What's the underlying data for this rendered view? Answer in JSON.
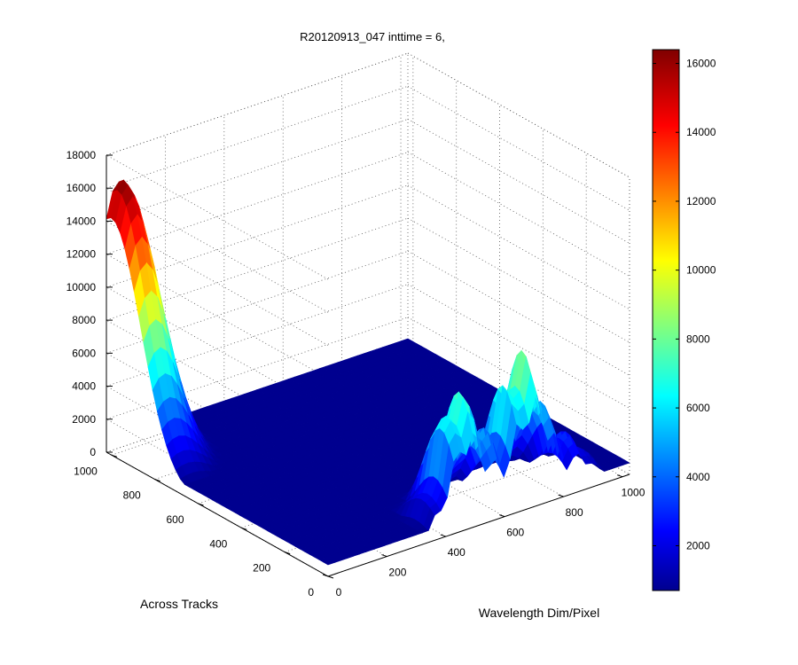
{
  "chart_data": {
    "type": "surface",
    "title": "R20120913_047 inttime = 6,",
    "xlabel": "Wavelength Dim/Pixel",
    "ylabel": "Across Tracks",
    "x_ticks": [
      "0",
      "200",
      "400",
      "600",
      "800",
      "1000"
    ],
    "y_ticks": [
      "0",
      "200",
      "400",
      "600",
      "800",
      "1000"
    ],
    "z_ticks": [
      "0",
      "2000",
      "4000",
      "6000",
      "8000",
      "10000",
      "12000",
      "14000",
      "16000",
      "18000"
    ],
    "xlim": [
      0,
      1024
    ],
    "ylim": [
      0,
      1024
    ],
    "zlim": [
      0,
      18000
    ],
    "grid": true,
    "colormap": "jet",
    "colorbar": {
      "range": [
        700,
        16400
      ],
      "ticks": [
        "2000",
        "4000",
        "6000",
        "8000",
        "10000",
        "12000",
        "14000",
        "16000"
      ],
      "placement": "right"
    },
    "features": [
      {
        "description_type": "peak",
        "x": 40,
        "y": 1000,
        "z": 16400
      },
      {
        "description_type": "ridge",
        "x": 620,
        "y": 60,
        "z": 8000
      }
    ],
    "colors": {
      "low": "#00008f",
      "mid": "#00ffff",
      "high": "#800000"
    }
  }
}
